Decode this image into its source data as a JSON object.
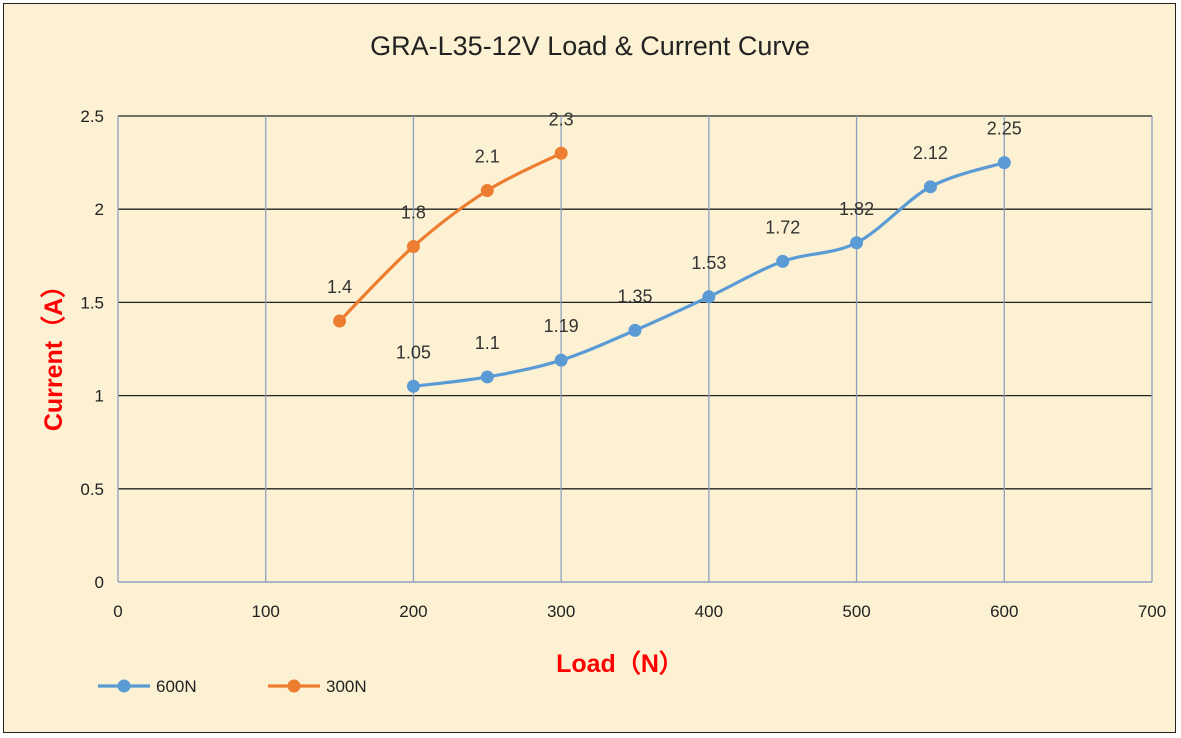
{
  "chart_data": {
    "type": "line",
    "title": "GRA-L35-12V Load & Current Curve",
    "xlabel": "Load（N）",
    "ylabel": "Current（A）",
    "axis_title_color": "#ff0000",
    "xlim": [
      0,
      700
    ],
    "ylim": [
      0,
      2.5
    ],
    "x_ticks": [
      "0",
      "100",
      "200",
      "300",
      "400",
      "500",
      "600",
      "700"
    ],
    "y_ticks": [
      "0",
      "0.5",
      "1",
      "1.5",
      "2",
      "2.5"
    ],
    "grid": true,
    "legend_position": "bottom-left",
    "series": [
      {
        "name": "600N",
        "color": "#5b9bd5",
        "x": [
          200,
          250,
          300,
          350,
          400,
          450,
          500,
          550,
          600
        ],
        "y": [
          1.05,
          1.1,
          1.19,
          1.35,
          1.53,
          1.72,
          1.82,
          2.12,
          2.25
        ],
        "labels": [
          "1.05",
          "1.1",
          "1.19",
          "1.35",
          "1.53",
          "1.72",
          "1.82",
          "2.12",
          "2.25"
        ]
      },
      {
        "name": "300N",
        "color": "#ed7d31",
        "x": [
          150,
          200,
          250,
          300
        ],
        "y": [
          1.4,
          1.8,
          2.1,
          2.3
        ],
        "labels": [
          "1.4",
          "1.8",
          "2.1",
          "2.3"
        ]
      }
    ]
  }
}
